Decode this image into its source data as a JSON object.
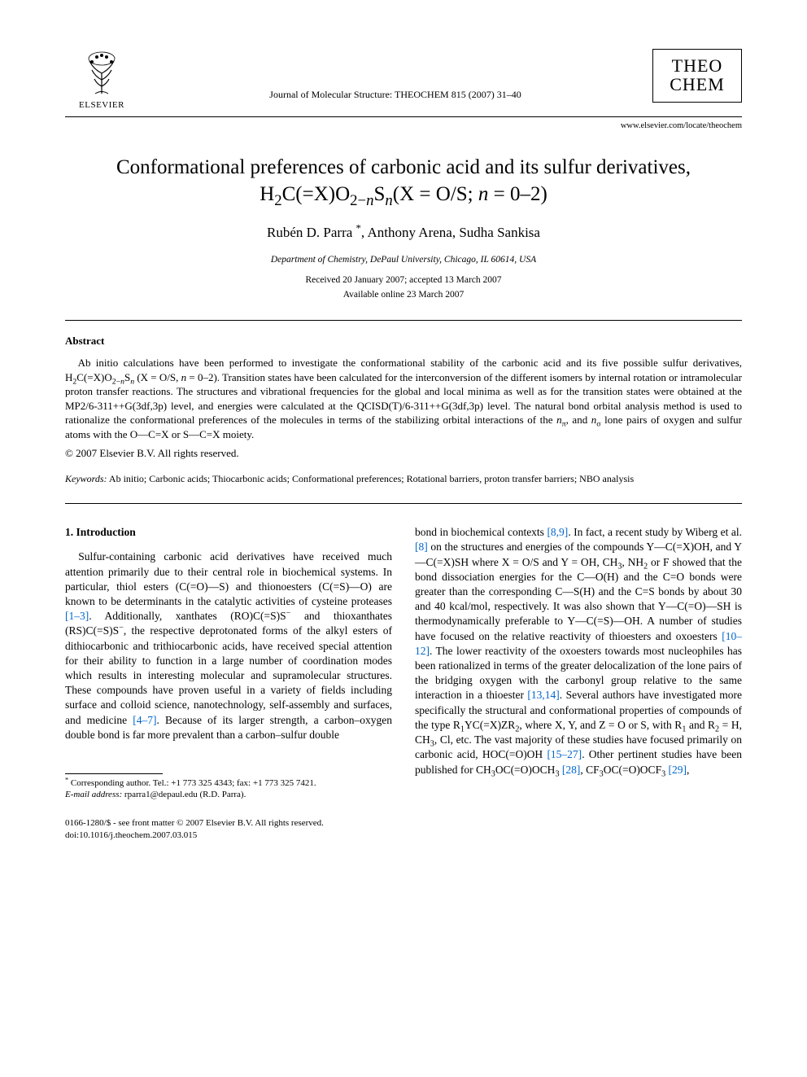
{
  "header": {
    "publisher_name": "ELSEVIER",
    "journal_ref": "Journal of Molecular Structure: THEOCHEM 815 (2007) 31–40",
    "journal_logo_line1": "THEO",
    "journal_logo_line2": "CHEM",
    "journal_url": "www.elsevier.com/locate/theochem"
  },
  "article": {
    "title_html": "Conformational preferences of carbonic acid and its sulfur derivatives, H<sub>2</sub>C(=X)O<sub>2−<i>n</i></sub>S<sub><i>n</i></sub>(X = O/S; <i>n</i> = 0–2)",
    "authors_html": "Rubén D. Parra <sup>*</sup>, Anthony Arena, Sudha Sankisa",
    "affiliation": "Department of Chemistry, DePaul University, Chicago, IL 60614, USA",
    "received": "Received 20 January 2007; accepted 13 March 2007",
    "available": "Available online 23 March 2007"
  },
  "abstract": {
    "heading": "Abstract",
    "body_html": "Ab initio calculations have been performed to investigate the conformational stability of the carbonic acid and its five possible sulfur derivatives, H<sub>2</sub>C(=X)O<sub>2−<i>n</i></sub>S<sub><i>n</i></sub> (X = O/S, <i>n</i> = 0–2). Transition states have been calculated for the interconversion of the different isomers by internal rotation or intramolecular proton transfer reactions. The structures and vibrational frequencies for the global and local minima as well as for the transition states were obtained at the MP2/6-311++G(3df,3p) level, and energies were calculated at the QCISD(T)/6-311++G(3df,3p) level. The natural bond orbital analysis method is used to rationalize the conformational preferences of the molecules in terms of the stabilizing orbital interactions of the <i>n</i><sub>π</sub>, and <i>n</i><sub>σ</sub> lone pairs of oxygen and sulfur atoms with the O—C=X or S—C=X moiety.",
    "copyright": "© 2007 Elsevier B.V. All rights reserved."
  },
  "keywords": {
    "label": "Keywords:",
    "text": " Ab initio; Carbonic acids; Thiocarbonic acids; Conformational preferences; Rotational barriers, proton transfer barriers; NBO analysis"
  },
  "section1": {
    "heading": "1. Introduction",
    "col1_html": "Sulfur-containing carbonic acid derivatives have received much attention primarily due to their central role in biochemical systems. In particular, thiol esters (C(=O)—S) and thionoesters (C(=S)—O) are known to be determinants in the catalytic activities of cysteine proteases <span class=\"ref-link\">[1–3]</span>. Additionally, xanthates (RO)C(=S)S<sup>−</sup> and thioxanthates (RS)C(=S)S<sup>−</sup>, the respective deprotonated forms of the alkyl esters of dithiocarbonic and trithiocarbonic acids, have received special attention for their ability to function in a large number of coordination modes which results in interesting molecular and supramolecular structures. These compounds have proven useful in a variety of fields including surface and colloid science, nanotechnology, self-assembly and surfaces, and medicine <span class=\"ref-link\">[4–7]</span>. Because of its larger strength, a carbon–oxygen double bond is far more prevalent than a carbon–sulfur double",
    "col2_html": "bond in biochemical contexts <span class=\"ref-link\">[8,9]</span>. In fact, a recent study by Wiberg et al. <span class=\"ref-link\">[8]</span> on the structures and energies of the compounds Y—C(=X)OH, and Y—C(=X)SH where X = O/S and Y = OH, CH<sub>3</sub>, NH<sub>2</sub> or F showed that the bond dissociation energies for the C—O(H) and the C=O bonds were greater than the corresponding C—S(H) and the C=S bonds by about 30 and 40 kcal/mol, respectively. It was also shown that Y—C(=O)—SH is thermodynamically preferable to Y—C(=S)—OH. A number of studies have focused on the relative reactivity of thioesters and oxoesters <span class=\"ref-link\">[10–12]</span>. The lower reactivity of the oxoesters towards most nucleophiles has been rationalized in terms of the greater delocalization of the lone pairs of the bridging oxygen with the carbonyl group relative to the same interaction in a thioester <span class=\"ref-link\">[13,14]</span>. Several authors have investigated more specifically the structural and conformational properties of compounds of the type R<sub>1</sub>YC(=X)ZR<sub>2</sub>, where X, Y, and Z = O or S, with R<sub>1</sub> and R<sub>2</sub> = H, CH<sub>3</sub>, Cl, etc. The vast majority of these studies have focused primarily on carbonic acid, HOC(=O)OH <span class=\"ref-link\">[15–27]</span>. Other pertinent studies have been published for CH<sub>3</sub>OC(=O)OCH<sub>3</sub> <span class=\"ref-link\">[28]</span>, CF<sub>3</sub>OC(=O)OCF<sub>3</sub> <span class=\"ref-link\">[29]</span>,"
  },
  "footnote": {
    "corr_html": "<sup>*</sup> Corresponding author. Tel.: +1 773 325 4343; fax: +1 773 325 7421.",
    "email_label": "E-mail address:",
    "email": " rparra1@depaul.edu (R.D. Parra)."
  },
  "footer": {
    "line1": "0166-1280/$ - see front matter © 2007 Elsevier B.V. All rights reserved.",
    "line2": "doi:10.1016/j.theochem.2007.03.015"
  },
  "colors": {
    "text": "#000000",
    "link": "#0066cc",
    "background": "#ffffff",
    "rule": "#000000"
  },
  "fonts": {
    "body_family": "Times New Roman, serif",
    "title_size_pt": 19,
    "body_size_pt": 10,
    "abstract_size_pt": 10,
    "footnote_size_pt": 8
  }
}
